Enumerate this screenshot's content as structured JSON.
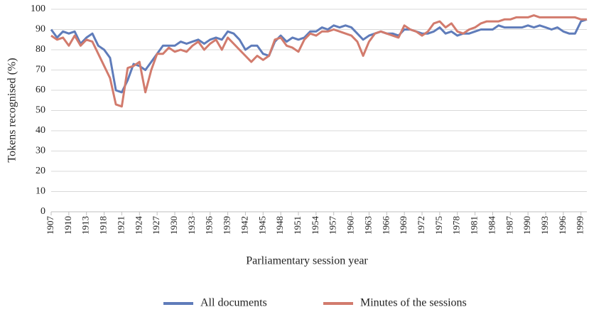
{
  "chart_data": {
    "type": "line",
    "y_label": "Tokens recognised (%)",
    "x_label": "Parliamentary session year",
    "categories": [
      "1907",
      null,
      null,
      "1910",
      null,
      null,
      "1913",
      null,
      null,
      "1918",
      null,
      null,
      "1921",
      null,
      null,
      "1924",
      null,
      null,
      "1927",
      null,
      null,
      "1930",
      null,
      null,
      "1933",
      null,
      null,
      "1936",
      null,
      null,
      "1939",
      null,
      null,
      "1942",
      null,
      null,
      "1945",
      null,
      null,
      "1948",
      null,
      null,
      "1951",
      null,
      null,
      "1954",
      null,
      null,
      "1957",
      null,
      null,
      "1960",
      null,
      null,
      "1963",
      null,
      null,
      "1966",
      null,
      null,
      "1969",
      null,
      null,
      "1972",
      null,
      null,
      "1975",
      null,
      null,
      "1978",
      null,
      null,
      "1981",
      null,
      null,
      "1984",
      null,
      null,
      "1987",
      null,
      null,
      "1990",
      null,
      null,
      "1993",
      null,
      null,
      "1996",
      null,
      null,
      "1999",
      null
    ],
    "series": [
      {
        "name": "All documents",
        "color": "#5f7cba",
        "values": [
          90,
          86,
          89,
          88,
          89,
          83,
          86,
          88,
          82,
          80,
          76,
          60,
          59,
          65,
          73,
          72,
          70,
          74,
          78,
          82,
          82,
          82,
          84,
          83,
          84,
          85,
          83,
          85,
          86,
          85,
          89,
          88,
          85,
          80,
          82,
          82,
          78,
          77,
          84,
          87,
          84,
          86,
          85,
          86,
          89,
          89,
          91,
          90,
          92,
          91,
          92,
          91,
          88,
          85,
          87,
          88,
          89,
          88,
          88,
          87,
          90,
          90,
          89,
          88,
          88,
          89,
          91,
          88,
          89,
          87,
          88,
          88,
          89,
          90,
          90,
          90,
          92,
          91,
          91,
          91,
          91,
          92,
          91,
          92,
          91,
          90,
          91,
          89,
          88,
          88,
          94,
          95
        ]
      },
      {
        "name": "Minutes of the sessions",
        "color": "#d27b6d",
        "values": [
          87,
          85,
          86,
          82,
          87,
          82,
          85,
          84,
          78,
          72,
          66,
          53,
          52,
          71,
          72,
          74,
          59,
          70,
          78,
          78,
          81,
          79,
          80,
          79,
          82,
          84,
          80,
          83,
          85,
          80,
          86,
          83,
          80,
          77,
          74,
          77,
          75,
          77,
          85,
          86,
          82,
          81,
          79,
          85,
          88,
          87,
          89,
          89,
          90,
          89,
          88,
          87,
          84,
          77,
          84,
          88,
          89,
          88,
          87,
          86,
          92,
          90,
          89,
          87,
          89,
          93,
          94,
          91,
          93,
          89,
          88,
          90,
          91,
          93,
          94,
          94,
          94,
          95,
          95,
          96,
          96,
          96,
          97,
          96,
          96,
          96,
          96,
          96,
          96,
          96,
          95,
          95
        ]
      }
    ],
    "ylim": [
      0,
      100
    ],
    "yticks": [
      0,
      10,
      20,
      30,
      40,
      50,
      60,
      70,
      80,
      90,
      100
    ],
    "grid": true,
    "legend": "bottom"
  }
}
